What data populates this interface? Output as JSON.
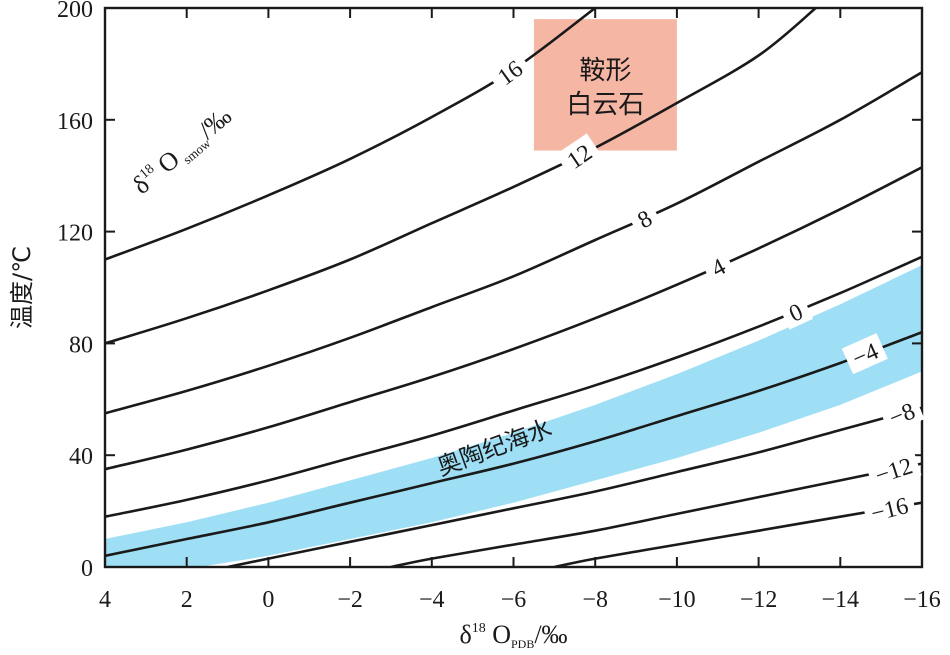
{
  "chart_data": {
    "type": "line",
    "x_axis": {
      "ticks": [
        4,
        2,
        0,
        -2,
        -4,
        -6,
        -8,
        -10,
        -12,
        -14,
        -16
      ],
      "tick_labels": [
        "4",
        "2",
        "0",
        "−2",
        "−4",
        "−6",
        "−8",
        "−10",
        "−12",
        "−14",
        "−16"
      ],
      "range": [
        4,
        -16
      ],
      "label_main": "δ",
      "label_sup": "18",
      "label_O": "O",
      "label_sub": "PDB",
      "label_unit": "/‰"
    },
    "y_axis": {
      "ticks": [
        0,
        40,
        80,
        120,
        160,
        200
      ],
      "tick_labels": [
        "0",
        "40",
        "80",
        "120",
        "160",
        "200"
      ],
      "range": [
        0,
        200
      ],
      "label": "温度/℃"
    },
    "series_title": {
      "main": "δ",
      "sup": "18",
      "O": "O",
      "sub": "smow",
      "unit": "/‰"
    },
    "contours": [
      {
        "label": "16",
        "points": [
          [
            4,
            110
          ],
          [
            2,
            121
          ],
          [
            0,
            133
          ],
          [
            -2,
            146
          ],
          [
            -4,
            161
          ],
          [
            -6,
            178
          ],
          [
            -8,
            200
          ]
        ]
      },
      {
        "label": "12",
        "points": [
          [
            4,
            80
          ],
          [
            2,
            89
          ],
          [
            0,
            99
          ],
          [
            -2,
            110
          ],
          [
            -4,
            123
          ],
          [
            -6,
            136
          ],
          [
            -8,
            150
          ],
          [
            -10,
            166
          ],
          [
            -12,
            183
          ],
          [
            -13.4,
            200
          ]
        ]
      },
      {
        "label": "8",
        "points": [
          [
            4,
            55
          ],
          [
            2,
            63
          ],
          [
            0,
            72
          ],
          [
            -2,
            82
          ],
          [
            -4,
            93
          ],
          [
            -6,
            104
          ],
          [
            -8,
            117
          ],
          [
            -10,
            130
          ],
          [
            -12,
            145
          ],
          [
            -14,
            160
          ],
          [
            -16,
            177
          ]
        ]
      },
      {
        "label": "4",
        "points": [
          [
            4,
            35
          ],
          [
            2,
            42
          ],
          [
            0,
            50
          ],
          [
            -2,
            59
          ],
          [
            -4,
            68
          ],
          [
            -6,
            78
          ],
          [
            -8,
            89
          ],
          [
            -10,
            101
          ],
          [
            -12,
            114
          ],
          [
            -14,
            128
          ],
          [
            -16,
            143
          ]
        ]
      },
      {
        "label": "0",
        "points": [
          [
            4,
            18
          ],
          [
            2,
            24
          ],
          [
            0,
            31
          ],
          [
            -2,
            39
          ],
          [
            -4,
            47
          ],
          [
            -6,
            56
          ],
          [
            -8,
            65
          ],
          [
            -10,
            75
          ],
          [
            -12,
            86
          ],
          [
            -14,
            98
          ],
          [
            -16,
            111
          ]
        ]
      },
      {
        "label": "−4",
        "points": [
          [
            4,
            4
          ],
          [
            2,
            10
          ],
          [
            0,
            16
          ],
          [
            -2,
            23
          ],
          [
            -4,
            30
          ],
          [
            -6,
            37
          ],
          [
            -8,
            45
          ],
          [
            -10,
            54
          ],
          [
            -12,
            63
          ],
          [
            -14,
            73
          ],
          [
            -16,
            84
          ]
        ]
      },
      {
        "label": "−8",
        "points": [
          [
            1,
            0
          ],
          [
            0,
            3
          ],
          [
            -2,
            9
          ],
          [
            -4,
            15
          ],
          [
            -6,
            21
          ],
          [
            -8,
            27
          ],
          [
            -10,
            34
          ],
          [
            -12,
            41
          ],
          [
            -14,
            49
          ],
          [
            -16,
            57
          ]
        ]
      },
      {
        "label": "−12",
        "points": [
          [
            -3,
            0
          ],
          [
            -4,
            3
          ],
          [
            -6,
            8
          ],
          [
            -8,
            13
          ],
          [
            -10,
            19
          ],
          [
            -12,
            25
          ],
          [
            -14,
            31
          ],
          [
            -16,
            37
          ]
        ]
      },
      {
        "label": "−16",
        "points": [
          [
            -7,
            0
          ],
          [
            -8,
            3
          ],
          [
            -10,
            8
          ],
          [
            -12,
            13
          ],
          [
            -14,
            18
          ],
          [
            -16,
            23
          ]
        ]
      }
    ],
    "bands": [
      {
        "label": "奥陶纪海水",
        "color": "#9edff5",
        "lower": [
          [
            1.7,
            0
          ],
          [
            0,
            4
          ],
          [
            -2,
            10
          ],
          [
            -4,
            16
          ],
          [
            -6,
            23
          ],
          [
            -8,
            31
          ],
          [
            -10,
            39
          ],
          [
            -12,
            48
          ],
          [
            -14,
            58
          ],
          [
            -16,
            70
          ]
        ],
        "upper": [
          [
            4,
            10
          ],
          [
            2,
            16
          ],
          [
            0,
            23
          ],
          [
            -2,
            31
          ],
          [
            -4,
            39
          ],
          [
            -6,
            48
          ],
          [
            -8,
            58
          ],
          [
            -10,
            69
          ],
          [
            -12,
            81
          ],
          [
            -14,
            94
          ],
          [
            -16,
            108
          ]
        ]
      }
    ],
    "regions": [
      {
        "label_line1": "鞍形",
        "label_line2": "白云石",
        "color": "#f6b6a4",
        "x_range": [
          -6.5,
          -10
        ],
        "y_range": [
          149,
          196
        ]
      }
    ],
    "annotations": [
      {
        "text": "奥陶纪海水"
      }
    ]
  }
}
